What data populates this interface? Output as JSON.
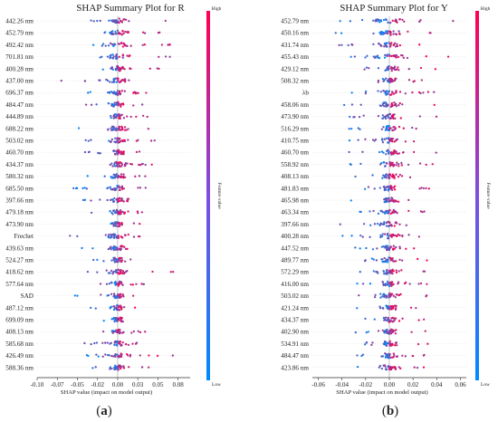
{
  "colors": {
    "high": "#ff0051",
    "low": "#008bfb",
    "axis": "#333333",
    "zero_line": "#999999",
    "row_guide": "#cccccc"
  },
  "chart_data": [
    {
      "type": "scatter",
      "subtype": "shap-beeswarm",
      "title": "SHAP Summary Plot for R",
      "xlabel": "SHAP value (impact on model output)",
      "xlim": [
        -0.1,
        0.09
      ],
      "xticks": [
        "-0.10",
        "-0.07",
        "-0.05",
        "-0.02",
        "0.00",
        "0.03",
        "0.05",
        "0.08"
      ],
      "xtick_values": [
        -0.1,
        -0.075,
        -0.05,
        -0.025,
        0.0,
        0.025,
        0.05,
        0.075
      ],
      "colorbar": {
        "label": "Feature value",
        "high": "High",
        "low": "Low"
      },
      "panel_label": "(a)",
      "features": [
        {
          "name": "442.26 nm",
          "min": -0.06,
          "max": 0.06
        },
        {
          "name": "452.79 nm",
          "min": -0.065,
          "max": 0.055
        },
        {
          "name": "492.42 nm",
          "min": -0.045,
          "max": 0.075
        },
        {
          "name": "701.81 nm",
          "min": -0.05,
          "max": 0.07
        },
        {
          "name": "400.28 nm",
          "min": -0.04,
          "max": 0.055
        },
        {
          "name": "437.00 nm",
          "min": -0.075,
          "max": 0.045
        },
        {
          "name": "696.37 nm",
          "min": -0.04,
          "max": 0.045
        },
        {
          "name": "484.47 nm",
          "min": -0.045,
          "max": 0.045
        },
        {
          "name": "444.89 nm",
          "min": -0.05,
          "max": 0.045
        },
        {
          "name": "688.22 nm",
          "min": -0.06,
          "max": 0.04
        },
        {
          "name": "503.02 nm",
          "min": -0.04,
          "max": 0.05
        },
        {
          "name": "460.70 nm",
          "min": -0.045,
          "max": 0.035
        },
        {
          "name": "434.37 nm",
          "min": -0.04,
          "max": 0.045
        },
        {
          "name": "580.32 nm",
          "min": -0.045,
          "max": 0.04
        },
        {
          "name": "685.50 nm",
          "min": -0.055,
          "max": 0.035
        },
        {
          "name": "397.66 nm",
          "min": -0.06,
          "max": 0.03
        },
        {
          "name": "479.18 nm",
          "min": -0.04,
          "max": 0.04
        },
        {
          "name": "473.90 nm",
          "min": -0.04,
          "max": 0.03
        },
        {
          "name": "Frechet",
          "min": -0.065,
          "max": 0.035
        },
        {
          "name": "439.63 nm",
          "min": -0.045,
          "max": 0.035
        },
        {
          "name": "524.27 nm",
          "min": -0.04,
          "max": 0.04
        },
        {
          "name": "418.62 nm",
          "min": -0.04,
          "max": 0.07
        },
        {
          "name": "577.64 nm",
          "min": -0.035,
          "max": 0.035
        },
        {
          "name": "SAD",
          "min": -0.06,
          "max": 0.03
        },
        {
          "name": "487.12 nm",
          "min": -0.035,
          "max": 0.03
        },
        {
          "name": "699.09 nm",
          "min": -0.035,
          "max": 0.03
        },
        {
          "name": "408.13 nm",
          "min": -0.04,
          "max": 0.035
        },
        {
          "name": "585.68 nm",
          "min": -0.045,
          "max": 0.03
        },
        {
          "name": "426.49 nm",
          "min": -0.04,
          "max": 0.075
        },
        {
          "name": "588.36 nm",
          "min": -0.035,
          "max": 0.04
        }
      ]
    },
    {
      "type": "scatter",
      "subtype": "shap-beeswarm",
      "title": "SHAP Summary Plot for Y",
      "xlabel": "SHAP value (impact on model output)",
      "xlim": [
        -0.065,
        0.065
      ],
      "xticks": [
        "-0.06",
        "-0.04",
        "-0.02",
        "0.00",
        "0.02",
        "0.04",
        "0.06"
      ],
      "xtick_values": [
        -0.06,
        -0.04,
        -0.02,
        0.0,
        0.02,
        0.04,
        0.06
      ],
      "colorbar": {
        "label": "Feature value",
        "high": "High",
        "low": "Low"
      },
      "panel_label": "(b)",
      "features": [
        {
          "name": "452.79 nm",
          "min": -0.05,
          "max": 0.055
        },
        {
          "name": "450.16 nm",
          "min": -0.05,
          "max": 0.05
        },
        {
          "name": "431.74 nm",
          "min": -0.045,
          "max": 0.045
        },
        {
          "name": "455.43 nm",
          "min": -0.05,
          "max": 0.055
        },
        {
          "name": "429.12 nm",
          "min": -0.035,
          "max": 0.04
        },
        {
          "name": "508.32 nm",
          "min": -0.03,
          "max": 0.03
        },
        {
          "name": "λb",
          "min": -0.035,
          "max": 0.04
        },
        {
          "name": "458.06 nm",
          "min": -0.04,
          "max": 0.04
        },
        {
          "name": "473.90 nm",
          "min": -0.035,
          "max": 0.04
        },
        {
          "name": "516.29 nm",
          "min": -0.035,
          "max": 0.035
        },
        {
          "name": "410.75 nm",
          "min": -0.035,
          "max": 0.035
        },
        {
          "name": "460.70 nm",
          "min": -0.035,
          "max": 0.04
        },
        {
          "name": "558.92 nm",
          "min": -0.035,
          "max": 0.045
        },
        {
          "name": "408.13 nm",
          "min": -0.03,
          "max": 0.03
        },
        {
          "name": "481.83 nm",
          "min": -0.03,
          "max": 0.035
        },
        {
          "name": "465.98 nm",
          "min": -0.035,
          "max": 0.035
        },
        {
          "name": "463.34 nm",
          "min": -0.035,
          "max": 0.04
        },
        {
          "name": "397.66 nm",
          "min": -0.045,
          "max": 0.035
        },
        {
          "name": "400.28 nm",
          "min": -0.04,
          "max": 0.035
        },
        {
          "name": "447.52 nm",
          "min": -0.035,
          "max": 0.035
        },
        {
          "name": "489.77 nm",
          "min": -0.03,
          "max": 0.035
        },
        {
          "name": "572.29 nm",
          "min": -0.03,
          "max": 0.04
        },
        {
          "name": "416.00 nm",
          "min": -0.03,
          "max": 0.035
        },
        {
          "name": "503.02 nm",
          "min": -0.03,
          "max": 0.04
        },
        {
          "name": "421.24 nm",
          "min": -0.035,
          "max": 0.03
        },
        {
          "name": "434.37 nm",
          "min": -0.03,
          "max": 0.035
        },
        {
          "name": "402.90 nm",
          "min": -0.03,
          "max": 0.035
        },
        {
          "name": "534.91 nm",
          "min": -0.035,
          "max": 0.035
        },
        {
          "name": "484.47 nm",
          "min": -0.03,
          "max": 0.03
        },
        {
          "name": "423.86 nm",
          "min": -0.03,
          "max": 0.035
        }
      ]
    }
  ]
}
